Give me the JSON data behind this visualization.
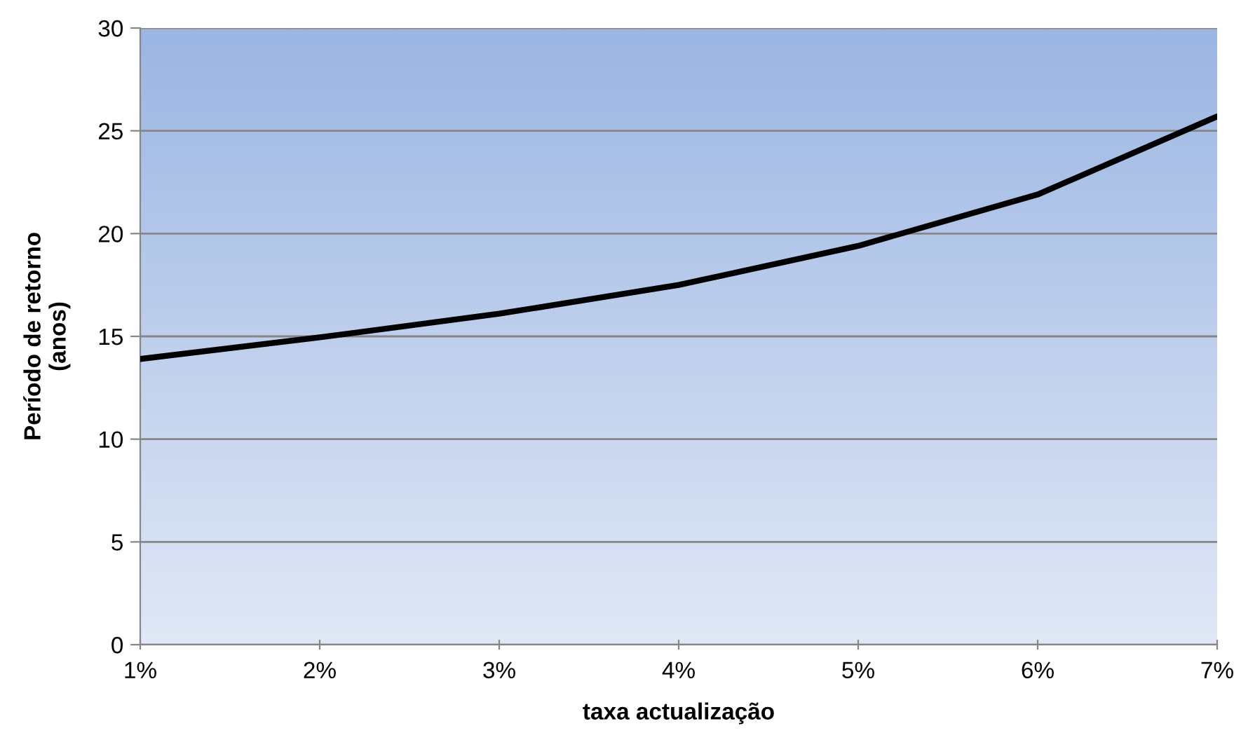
{
  "chart_data": {
    "type": "line",
    "xlabel": "taxa actualização",
    "ylabel": "Período de retorno\n(anos)",
    "categories": [
      "1%",
      "2%",
      "3%",
      "4%",
      "5%",
      "6%",
      "7%"
    ],
    "series": [
      {
        "color": "#000000",
        "values": [
          13.9,
          14.95,
          16.1,
          17.5,
          19.4,
          21.9,
          25.7
        ]
      }
    ],
    "ylim": [
      0,
      30
    ],
    "yticks": [
      0,
      5,
      10,
      15,
      20,
      25,
      30
    ],
    "grid": "y",
    "legend": false,
    "marker": "none",
    "line_style": "solid"
  }
}
